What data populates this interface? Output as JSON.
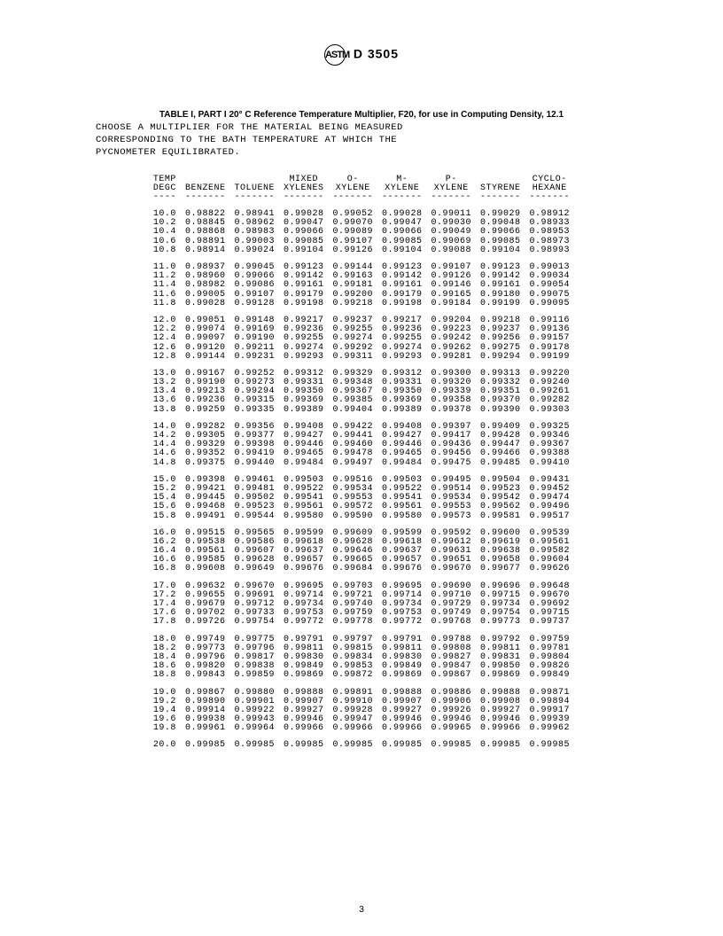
{
  "doc_number": "D 3505",
  "logo_text": "ASTM",
  "caption": "TABLE I, PART I 20° C Reference Temperature Multiplier, F20, for use in Computing Density, 12.1",
  "instruction_line1": "CHOOSE A MULTIPLIER FOR THE MATERIAL BEING MEASURED",
  "instruction_line2": "CORRESPONDING TO THE BATH TEMPERATURE AT WHICH THE",
  "instruction_line3": "PYCNOMETER EQUILIBRATED.",
  "page_number": "3",
  "table": {
    "header1": [
      "TEMP",
      "",
      "",
      "MIXED",
      "O-",
      "M-",
      "P-",
      "",
      "CYCLO-"
    ],
    "header2": [
      "DEGC",
      "BENZENE",
      "TOLUENE",
      "XYLENES",
      "XYLENE",
      "XYLENE",
      "XYLENE",
      "STYRENE",
      "HEXANE"
    ],
    "dashes": [
      "----",
      "-------",
      "-------",
      "-------",
      "-------",
      "-------",
      "-------",
      "-------",
      "-------"
    ],
    "groups": [
      [
        [
          "10.0",
          "0.98822",
          "0.98941",
          "0.99028",
          "0.99052",
          "0.99028",
          "0.99011",
          "0.99029",
          "0.98912"
        ],
        [
          "10.2",
          "0.98845",
          "0.98962",
          "0.99047",
          "0.99070",
          "0.99047",
          "0.99030",
          "0.99048",
          "0.98933"
        ],
        [
          "10.4",
          "0.98868",
          "0.98983",
          "0.99066",
          "0.99089",
          "0.99066",
          "0.99049",
          "0.99066",
          "0.98953"
        ],
        [
          "10.6",
          "0.98891",
          "0.99003",
          "0.99085",
          "0.99107",
          "0.99085",
          "0.99069",
          "0.99085",
          "0.98973"
        ],
        [
          "10.8",
          "0.98914",
          "0.99024",
          "0.99104",
          "0.99126",
          "0.99104",
          "0.99088",
          "0.99104",
          "0.98993"
        ]
      ],
      [
        [
          "11.0",
          "0.98937",
          "0.99045",
          "0.99123",
          "0.99144",
          "0.99123",
          "0.99107",
          "0.99123",
          "0.99013"
        ],
        [
          "11.2",
          "0.98960",
          "0.99066",
          "0.99142",
          "0.99163",
          "0.99142",
          "0.99126",
          "0.99142",
          "0.99034"
        ],
        [
          "11.4",
          "0.98982",
          "0.99086",
          "0.99161",
          "0.99181",
          "0.99161",
          "0.99146",
          "0.99161",
          "0.99054"
        ],
        [
          "11.6",
          "0.99005",
          "0.99107",
          "0.99179",
          "0.99200",
          "0.99179",
          "0.99165",
          "0.99180",
          "0.99075"
        ],
        [
          "11.8",
          "0.99028",
          "0.99128",
          "0.99198",
          "0.99218",
          "0.99198",
          "0.99184",
          "0.99199",
          "0.99095"
        ]
      ],
      [
        [
          "12.0",
          "0.99051",
          "0.99148",
          "0.99217",
          "0.99237",
          "0.99217",
          "0.99204",
          "0.99218",
          "0.99116"
        ],
        [
          "12.2",
          "0.99074",
          "0.99169",
          "0.99236",
          "0.99255",
          "0.99236",
          "0.99223",
          "0.99237",
          "0.99136"
        ],
        [
          "12.4",
          "0.99097",
          "0.99190",
          "0.99255",
          "0.99274",
          "0.99255",
          "0.99242",
          "0.99256",
          "0.99157"
        ],
        [
          "12.6",
          "0.99120",
          "0.99211",
          "0.99274",
          "0.99292",
          "0.99274",
          "0.99262",
          "0.99275",
          "0.99178"
        ],
        [
          "12.8",
          "0.99144",
          "0.99231",
          "0.99293",
          "0.99311",
          "0.99293",
          "0.99281",
          "0.99294",
          "0.99199"
        ]
      ],
      [
        [
          "13.0",
          "0.99167",
          "0.99252",
          "0.99312",
          "0.99329",
          "0.99312",
          "0.99300",
          "0.99313",
          "0.99220"
        ],
        [
          "13.2",
          "0.99190",
          "0.99273",
          "0.99331",
          "0.99348",
          "0.99331",
          "0.99320",
          "0.99332",
          "0.99240"
        ],
        [
          "13.4",
          "0.99213",
          "0.99294",
          "0.99350",
          "0.99367",
          "0.99350",
          "0.99339",
          "0.99351",
          "0.99261"
        ],
        [
          "13.6",
          "0.99236",
          "0.99315",
          "0.99369",
          "0.99385",
          "0.99369",
          "0.99358",
          "0.99370",
          "0.99282"
        ],
        [
          "13.8",
          "0.99259",
          "0.99335",
          "0.99389",
          "0.99404",
          "0.99389",
          "0.99378",
          "0.99390",
          "0.99303"
        ]
      ],
      [
        [
          "14.0",
          "0.99282",
          "0.99356",
          "0.99408",
          "0.99422",
          "0.99408",
          "0.99397",
          "0.99409",
          "0.99325"
        ],
        [
          "14.2",
          "0.99305",
          "0.99377",
          "0.99427",
          "0.99441",
          "0.99427",
          "0.99417",
          "0.99428",
          "0.99346"
        ],
        [
          "14.4",
          "0.99329",
          "0.99398",
          "0.99446",
          "0.99460",
          "0.99446",
          "0.99436",
          "0.99447",
          "0.99367"
        ],
        [
          "14.6",
          "0.99352",
          "0.99419",
          "0.99465",
          "0.99478",
          "0.99465",
          "0.99456",
          "0.99466",
          "0.99388"
        ],
        [
          "14.8",
          "0.99375",
          "0.99440",
          "0.99484",
          "0.99497",
          "0.99484",
          "0.99475",
          "0.99485",
          "0.99410"
        ]
      ],
      [
        [
          "15.0",
          "0.99398",
          "0.99461",
          "0.99503",
          "0.99516",
          "0.99503",
          "0.99495",
          "0.99504",
          "0.99431"
        ],
        [
          "15.2",
          "0.99421",
          "0.99481",
          "0.99522",
          "0.99534",
          "0.99522",
          "0.99514",
          "0.99523",
          "0.99452"
        ],
        [
          "15.4",
          "0.99445",
          "0.99502",
          "0.99541",
          "0.99553",
          "0.99541",
          "0.99534",
          "0.99542",
          "0.99474"
        ],
        [
          "15.6",
          "0.99468",
          "0.99523",
          "0.99561",
          "0.99572",
          "0.99561",
          "0.99553",
          "0.99562",
          "0.99496"
        ],
        [
          "15.8",
          "0.99491",
          "0.99544",
          "0.99580",
          "0.99590",
          "0.99580",
          "0.99573",
          "0.99581",
          "0.99517"
        ]
      ],
      [
        [
          "16.0",
          "0.99515",
          "0.99565",
          "0.99599",
          "0.99609",
          "0.99599",
          "0.99592",
          "0.99600",
          "0.99539"
        ],
        [
          "16.2",
          "0.99538",
          "0.99586",
          "0.99618",
          "0.99628",
          "0.99618",
          "0.99612",
          "0.99619",
          "0.99561"
        ],
        [
          "16.4",
          "0.99561",
          "0.99607",
          "0.99637",
          "0.99646",
          "0.99637",
          "0.99631",
          "0.99638",
          "0.99582"
        ],
        [
          "16.6",
          "0.99585",
          "0.99628",
          "0.99657",
          "0.99665",
          "0.99657",
          "0.99651",
          "0.99658",
          "0.99604"
        ],
        [
          "16.8",
          "0.99608",
          "0.99649",
          "0.99676",
          "0.99684",
          "0.99676",
          "0.99670",
          "0.99677",
          "0.99626"
        ]
      ],
      [
        [
          "17.0",
          "0.99632",
          "0.99670",
          "0.99695",
          "0.99703",
          "0.99695",
          "0.99690",
          "0.99696",
          "0.99648"
        ],
        [
          "17.2",
          "0.99655",
          "0.99691",
          "0.99714",
          "0.99721",
          "0.99714",
          "0.99710",
          "0.99715",
          "0.99670"
        ],
        [
          "17.4",
          "0.99679",
          "0.99712",
          "0.99734",
          "0.99740",
          "0.99734",
          "0.99729",
          "0.99734",
          "0.99692"
        ],
        [
          "17.6",
          "0.99702",
          "0.99733",
          "0.99753",
          "0.99759",
          "0.99753",
          "0.99749",
          "0.99754",
          "0.99715"
        ],
        [
          "17.8",
          "0.99726",
          "0.99754",
          "0.99772",
          "0.99778",
          "0.99772",
          "0.99768",
          "0.99773",
          "0.99737"
        ]
      ],
      [
        [
          "18.0",
          "0.99749",
          "0.99775",
          "0.99791",
          "0.99797",
          "0.99791",
          "0.99788",
          "0.99792",
          "0.99759"
        ],
        [
          "18.2",
          "0.99773",
          "0.99796",
          "0.99811",
          "0.99815",
          "0.99811",
          "0.99808",
          "0.99811",
          "0.99781"
        ],
        [
          "18.4",
          "0.99796",
          "0.99817",
          "0.99830",
          "0.99834",
          "0.99830",
          "0.99827",
          "0.99831",
          "0.99804"
        ],
        [
          "18.6",
          "0.99820",
          "0.99838",
          "0.99849",
          "0.99853",
          "0.99849",
          "0.99847",
          "0.99850",
          "0.99826"
        ],
        [
          "18.8",
          "0.99843",
          "0.99859",
          "0.99869",
          "0.99872",
          "0.99869",
          "0.99867",
          "0.99869",
          "0.99849"
        ]
      ],
      [
        [
          "19.0",
          "0.99867",
          "0.99880",
          "0.99888",
          "0.99891",
          "0.99888",
          "0.99886",
          "0.99888",
          "0.99871"
        ],
        [
          "19.2",
          "0.99890",
          "0.99901",
          "0.99907",
          "0.99910",
          "0.99907",
          "0.99906",
          "0.99908",
          "0.99894"
        ],
        [
          "19.4",
          "0.99914",
          "0.99922",
          "0.99927",
          "0.99928",
          "0.99927",
          "0.99926",
          "0.99927",
          "0.99917"
        ],
        [
          "19.6",
          "0.99938",
          "0.99943",
          "0.99946",
          "0.99947",
          "0.99946",
          "0.99946",
          "0.99946",
          "0.99939"
        ],
        [
          "19.8",
          "0.99961",
          "0.99964",
          "0.99966",
          "0.99966",
          "0.99966",
          "0.99965",
          "0.99966",
          "0.99962"
        ]
      ],
      [
        [
          "20.0",
          "0.99985",
          "0.99985",
          "0.99985",
          "0.99985",
          "0.99985",
          "0.99985",
          "0.99985",
          "0.99985"
        ]
      ]
    ]
  }
}
